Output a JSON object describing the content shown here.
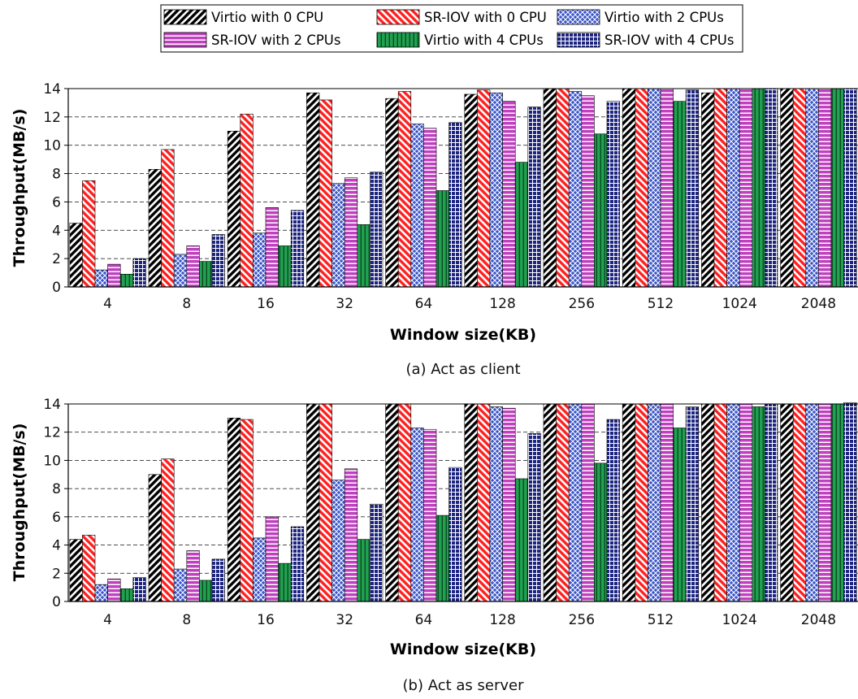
{
  "legend": {
    "entries": [
      {
        "label": "Virtio with 0 CPU",
        "pattern": "diag-black"
      },
      {
        "label": "SR-IOV with 0 CPU",
        "pattern": "diag-red"
      },
      {
        "label": "Virtio with 2 CPUs",
        "pattern": "cross-blue"
      },
      {
        "label": "SR-IOV with 2 CPUs",
        "pattern": "hstripe-magenta"
      },
      {
        "label": "Virtio with 4 CPUs",
        "pattern": "vstripe-green"
      },
      {
        "label": "SR-IOV with 4 CPUs",
        "pattern": "grid-navy"
      }
    ]
  },
  "colors": {
    "virtio_0": "#000000",
    "sriov_0": "#ff2020",
    "virtio_2": "#3a55c8",
    "sriov_2": "#c040c0",
    "virtio_4": "#20a050",
    "sriov_4": "#1c2480"
  },
  "chart_data": [
    {
      "type": "bar",
      "caption": "(a) Act as client",
      "xlabel": "Window size(KB)",
      "ylabel": "Throughput(MB/s)",
      "ylim": [
        0,
        14
      ],
      "yticks": [
        "0",
        "2",
        "4",
        "6",
        "8",
        "10",
        "12",
        "14"
      ],
      "grid": "horizontal dashed",
      "categories": [
        "4",
        "8",
        "16",
        "32",
        "64",
        "128",
        "256",
        "512",
        "1024",
        "2048"
      ],
      "series": [
        {
          "name": "Virtio with 0 CPU",
          "values": [
            4.5,
            8.3,
            11.0,
            13.7,
            13.3,
            13.6,
            14.0,
            14.0,
            13.7,
            14.0
          ]
        },
        {
          "name": "SR-IOV with 0 CPU",
          "values": [
            7.5,
            9.7,
            12.2,
            13.2,
            13.8,
            13.9,
            14.0,
            14.0,
            14.0,
            14.0
          ]
        },
        {
          "name": "Virtio with 2 CPUs",
          "values": [
            1.2,
            2.3,
            3.8,
            7.3,
            11.5,
            13.7,
            13.8,
            14.0,
            14.0,
            14.0
          ]
        },
        {
          "name": "SR-IOV with 2 CPUs",
          "values": [
            1.6,
            2.9,
            5.6,
            7.7,
            11.2,
            13.1,
            13.5,
            14.0,
            14.0,
            14.0
          ]
        },
        {
          "name": "Virtio with 4 CPUs",
          "values": [
            0.9,
            1.8,
            2.9,
            4.4,
            6.8,
            8.8,
            10.8,
            13.1,
            14.0,
            14.0
          ]
        },
        {
          "name": "SR-IOV with 4 CPUs",
          "values": [
            2.0,
            3.7,
            5.4,
            8.1,
            11.6,
            12.7,
            13.1,
            13.9,
            14.0,
            14.0
          ]
        }
      ]
    },
    {
      "type": "bar",
      "caption": "(b) Act as server",
      "xlabel": "Window size(KB)",
      "ylabel": "Throughput(MB/s)",
      "ylim": [
        0,
        14
      ],
      "yticks": [
        "0",
        "2",
        "4",
        "6",
        "8",
        "10",
        "12",
        "14"
      ],
      "grid": "horizontal dashed",
      "categories": [
        "4",
        "8",
        "16",
        "32",
        "64",
        "128",
        "256",
        "512",
        "1024",
        "2048"
      ],
      "series": [
        {
          "name": "Virtio with 0 CPU",
          "values": [
            4.4,
            9.0,
            13.0,
            14.0,
            14.0,
            14.0,
            14.0,
            14.0,
            14.0,
            14.0
          ]
        },
        {
          "name": "SR-IOV with 0 CPU",
          "values": [
            4.7,
            10.1,
            12.9,
            14.0,
            14.0,
            14.0,
            14.0,
            14.0,
            14.0,
            14.0
          ]
        },
        {
          "name": "Virtio with 2 CPUs",
          "values": [
            1.2,
            2.3,
            4.5,
            8.6,
            12.3,
            13.8,
            14.0,
            14.0,
            14.0,
            14.0
          ]
        },
        {
          "name": "SR-IOV with 2 CPUs",
          "values": [
            1.6,
            3.6,
            6.0,
            9.4,
            12.2,
            13.7,
            14.0,
            14.0,
            14.0,
            14.0
          ]
        },
        {
          "name": "Virtio with 4 CPUs",
          "values": [
            0.9,
            1.5,
            2.7,
            4.4,
            6.1,
            8.7,
            9.8,
            12.3,
            13.8,
            14.0
          ]
        },
        {
          "name": "SR-IOV with 4 CPUs",
          "values": [
            1.7,
            3.0,
            5.3,
            6.9,
            9.5,
            11.9,
            12.9,
            13.8,
            14.0,
            14.1
          ]
        }
      ]
    }
  ]
}
